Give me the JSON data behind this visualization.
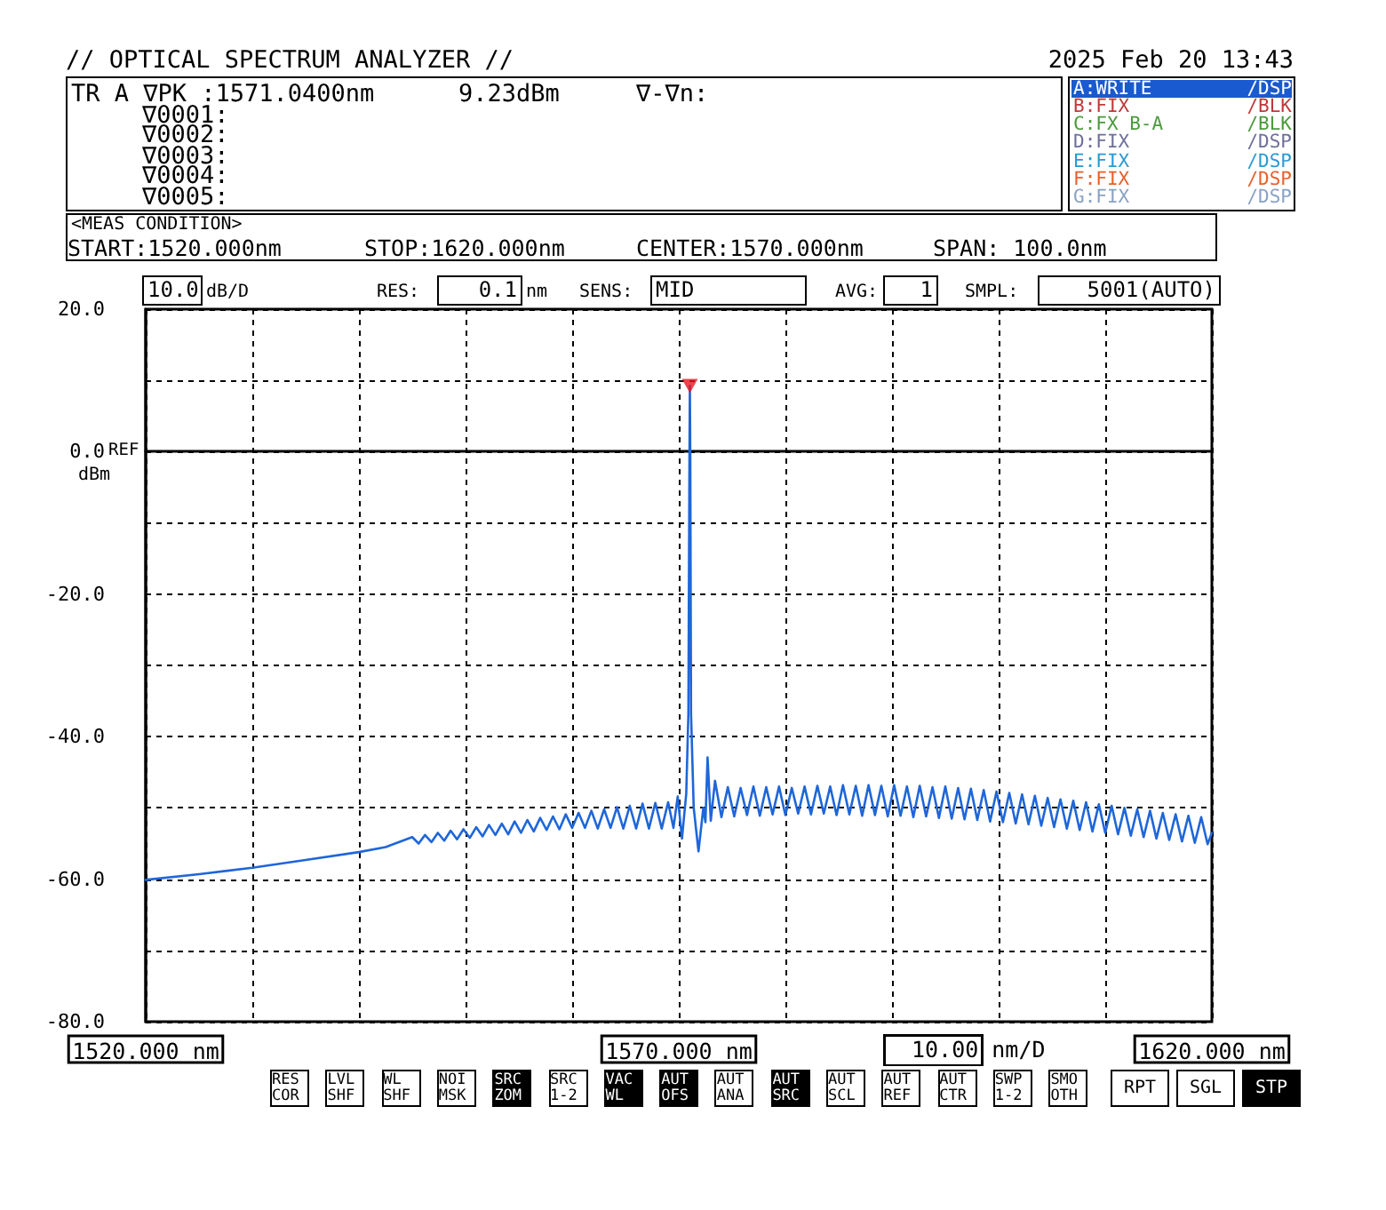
{
  "chart_data": {
    "type": "line",
    "title": "// OPTICAL SPECTRUM ANALYZER //",
    "ylabel": "dBm",
    "xlim": [
      1520,
      1620
    ],
    "ylim": [
      -80,
      20
    ],
    "xticks": [
      {
        "value": 1520,
        "label": "1520.000 nm"
      },
      {
        "value": 1530,
        "label": null
      },
      {
        "value": 1540,
        "label": null
      },
      {
        "value": 1550,
        "label": null
      },
      {
        "value": 1560,
        "label": null
      },
      {
        "value": 1570,
        "label": "1570.000 nm"
      },
      {
        "value": 1580,
        "label": null
      },
      {
        "value": 1590,
        "label": null
      },
      {
        "value": 1600,
        "label": null
      },
      {
        "value": 1610,
        "label": null
      },
      {
        "value": 1620,
        "label": "1620.000 nm"
      }
    ],
    "yticks": [
      {
        "value": -80,
        "label": "-80.0"
      },
      {
        "value": -70,
        "label": null
      },
      {
        "value": -60,
        "label": "-60.0"
      },
      {
        "value": -50,
        "label": null
      },
      {
        "value": -40,
        "label": "-40.0"
      },
      {
        "value": -30,
        "label": null
      },
      {
        "value": -20,
        "label": "-20.0"
      },
      {
        "value": -10,
        "label": null
      },
      {
        "value": 0,
        "label": "0.0"
      },
      {
        "value": 10,
        "label": null
      },
      {
        "value": 20,
        "label": "20.0"
      }
    ],
    "grid": true,
    "marker": "none",
    "line_style": "solid",
    "series": [
      {
        "color": "#1f66d9",
        "x": [
          1520,
          1525,
          1530,
          1535,
          1540,
          1542.5,
          1545,
          1545.6,
          1546.2,
          1546.8,
          1547.4,
          1548,
          1548.6,
          1549.2,
          1549.8,
          1550.4,
          1551,
          1551.6,
          1552.2,
          1552.8,
          1553.4,
          1554,
          1554.6,
          1555.2,
          1555.8,
          1556.4,
          1557,
          1557.6,
          1558.2,
          1558.8,
          1559.4,
          1560,
          1560.6,
          1561.2,
          1561.8,
          1562.4,
          1563,
          1563.6,
          1564.2,
          1564.8,
          1565.4,
          1566,
          1566.6,
          1567.2,
          1567.8,
          1568.4,
          1569,
          1569.5,
          1569.9,
          1570.3,
          1570.7,
          1570.9,
          1571,
          1571.04,
          1571.08,
          1571.15,
          1571.4,
          1571.85,
          1572.3,
          1572.5,
          1572.7,
          1573,
          1573.4,
          1574,
          1574.6,
          1575.2,
          1575.8,
          1576.4,
          1577,
          1577.6,
          1578.2,
          1578.8,
          1579.4,
          1580,
          1580.6,
          1581.2,
          1581.8,
          1582.4,
          1583,
          1583.6,
          1584.2,
          1584.8,
          1585.4,
          1586,
          1586.6,
          1587.2,
          1587.8,
          1588.4,
          1589,
          1589.6,
          1590.2,
          1590.8,
          1591.4,
          1592,
          1592.6,
          1593.2,
          1593.8,
          1594.4,
          1595,
          1595.6,
          1596.2,
          1596.8,
          1597.4,
          1598,
          1598.6,
          1599.2,
          1599.8,
          1600.4,
          1601,
          1601.6,
          1602.2,
          1602.8,
          1603.4,
          1604,
          1604.6,
          1605.2,
          1605.8,
          1606.4,
          1607,
          1607.6,
          1608.2,
          1608.8,
          1609.4,
          1610,
          1610.6,
          1611.2,
          1611.8,
          1612.4,
          1613,
          1613.6,
          1614.2,
          1614.8,
          1615.4,
          1616,
          1616.6,
          1617.2,
          1617.8,
          1618.4,
          1619,
          1619.6,
          1620
        ],
        "values": [
          -60.1,
          -59.3,
          -58.4,
          -57.3,
          -56.2,
          -55.5,
          -54.1,
          -55.0,
          -53.8,
          -54.8,
          -53.5,
          -54.6,
          -53.2,
          -54.4,
          -53.0,
          -54.2,
          -52.7,
          -54.0,
          -52.4,
          -53.8,
          -52.2,
          -53.7,
          -51.9,
          -53.5,
          -51.7,
          -53.3,
          -51.4,
          -53.1,
          -51.2,
          -53.0,
          -50.9,
          -52.8,
          -50.7,
          -52.8,
          -50.4,
          -52.9,
          -50.2,
          -52.8,
          -49.9,
          -52.9,
          -49.7,
          -52.9,
          -49.4,
          -52.9,
          -49.3,
          -52.9,
          -49.2,
          -52.8,
          -48.4,
          -54.3,
          -48.0,
          -36.8,
          -1.0,
          9.23,
          -1.0,
          -36.8,
          -50.0,
          -56.1,
          -50.0,
          -52.0,
          -42.9,
          -51.8,
          -46.2,
          -51.3,
          -47.1,
          -51.2,
          -47.2,
          -51.0,
          -47.0,
          -51.1,
          -47.1,
          -50.9,
          -47.0,
          -51.0,
          -47.2,
          -50.8,
          -47.0,
          -50.9,
          -46.9,
          -50.8,
          -47.0,
          -51.0,
          -46.8,
          -50.9,
          -46.9,
          -51.1,
          -46.8,
          -51.0,
          -46.9,
          -51.2,
          -46.8,
          -51.1,
          -47.0,
          -51.3,
          -46.9,
          -51.2,
          -47.1,
          -51.4,
          -47.0,
          -51.5,
          -47.2,
          -51.6,
          -47.3,
          -51.7,
          -47.5,
          -51.9,
          -47.7,
          -52.0,
          -47.9,
          -52.2,
          -48.1,
          -52.3,
          -48.3,
          -52.5,
          -48.6,
          -52.7,
          -48.8,
          -52.9,
          -49.0,
          -53.1,
          -49.2,
          -53.3,
          -49.5,
          -53.5,
          -49.7,
          -53.7,
          -50.0,
          -53.9,
          -50.2,
          -54.1,
          -50.4,
          -54.3,
          -50.7,
          -54.5,
          -50.9,
          -54.7,
          -51.1,
          -54.9,
          -51.3,
          -55.1,
          -53.5
        ]
      },
      {
        "type": "scatter",
        "marker": "triangle",
        "color": "#e8141e",
        "x": [
          1571.04
        ],
        "values": [
          9.23
        ]
      }
    ],
    "annotations": [
      "2025 Feb 20 13:43",
      "TR A ∇PK :1571.0400nm",
      "9.23dBm",
      "∇-∇n:",
      "∇0001:",
      "∇0002:",
      "∇0003:",
      "∇0004:",
      "∇0005:",
      "A:WRITE",
      "/DSP",
      "B:FIX",
      "/BLK",
      "C:FX B-A",
      "/BLK",
      "D:FIX",
      "/DSP",
      "E:FIX",
      "/DSP",
      "F:FIX",
      "/DSP",
      "G:FIX",
      "/DSP",
      "<MEAS CONDITION>",
      "START:1520.000nm",
      "STOP:1620.000nm",
      "CENTER:1570.000nm",
      "SPAN: 100.0nm",
      "10.0",
      "dB/D",
      "RES:",
      "0.1",
      "nm",
      "SENS:",
      "MID",
      "AVG:",
      "1",
      "SMPL:",
      "5001(AUTO)",
      "REF",
      "10.00 nm/D",
      "RES COR",
      "LVL SHF",
      "WL SHF",
      "NOI MSK",
      "SRC ZOM",
      "SRC 1-2",
      "VAC WL",
      "AUT OFS",
      "AUT ANA",
      "AUT SRC",
      "AUT SCL",
      "AUT REF",
      "AUT CTR",
      "SWP 1-2",
      "SMO OTH",
      "RPT",
      "SGL",
      "STP"
    ]
  }
}
